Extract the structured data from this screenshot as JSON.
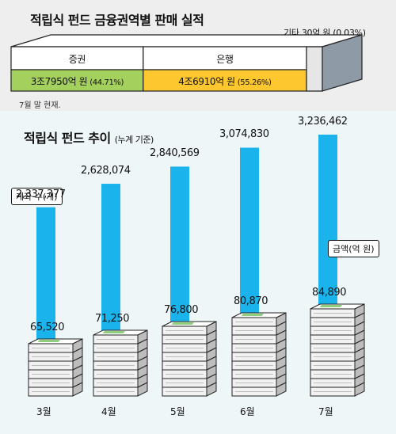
{
  "header": {
    "title": "적립식 펀드 금융권역별 판매 실적",
    "other_label": "기타 30억 원 (0.03%)",
    "note": "7월 말 현재."
  },
  "sectors": [
    {
      "name": "증권",
      "amount": "3조7950억 원",
      "pct": "(44.71%)",
      "share": 44.71,
      "color": "#a4d05e"
    },
    {
      "name": "은행",
      "amount": "4조6910억 원",
      "pct": "(55.26%)",
      "share": 55.26,
      "color": "#fdc72f"
    }
  ],
  "trend": {
    "title": "적립식 펀드 추이",
    "subtitle": "(누계 기준)",
    "accounts_label": "계좌 수(개)",
    "amount_label": "금액(억 원)"
  },
  "chart_data": {
    "type": "bar",
    "categories": [
      "3월",
      "4월",
      "5월",
      "6월",
      "7월"
    ],
    "series": [
      {
        "name": "계좌 수(개)",
        "values": [
          2337377,
          2628074,
          2840569,
          3074830,
          3236462
        ],
        "labels": [
          "2,337,377",
          "2,628,074",
          "2,840,569",
          "3,074,830",
          "3,236,462"
        ]
      },
      {
        "name": "금액(억 원)",
        "values": [
          65520,
          71250,
          76800,
          80870,
          84890
        ],
        "labels": [
          "65,520",
          "71,250",
          "76,800",
          "80,870",
          "84,890"
        ],
        "stacks": [
          6,
          7,
          8,
          9,
          10
        ]
      }
    ],
    "colors": {
      "bar": "#1ab3ec",
      "money": "#f2f2f2"
    }
  }
}
